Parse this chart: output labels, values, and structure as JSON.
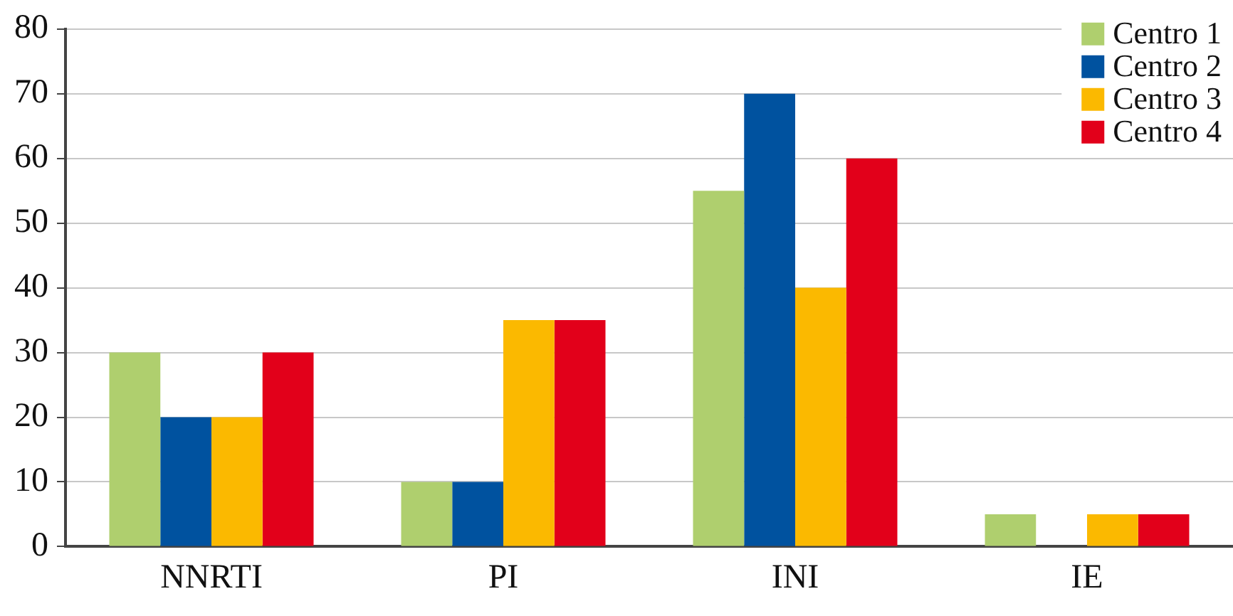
{
  "chart_data": {
    "type": "bar",
    "categories": [
      "NNRTI",
      "PI",
      "INI",
      "IE"
    ],
    "series": [
      {
        "name": "Centro 1",
        "color": "#afcf6e",
        "values": [
          30,
          10,
          55,
          5
        ]
      },
      {
        "name": "Centro 2",
        "color": "#00529f",
        "values": [
          20,
          10,
          70,
          0
        ]
      },
      {
        "name": "Centro 3",
        "color": "#fbb900",
        "values": [
          20,
          35,
          40,
          5
        ]
      },
      {
        "name": "Centro 4",
        "color": "#e2001a",
        "values": [
          30,
          35,
          60,
          5
        ]
      }
    ],
    "ylim": [
      0,
      80
    ],
    "yticks": [
      0,
      10,
      20,
      30,
      40,
      50,
      60,
      70,
      80
    ],
    "grid": "y",
    "legend": "top right"
  }
}
